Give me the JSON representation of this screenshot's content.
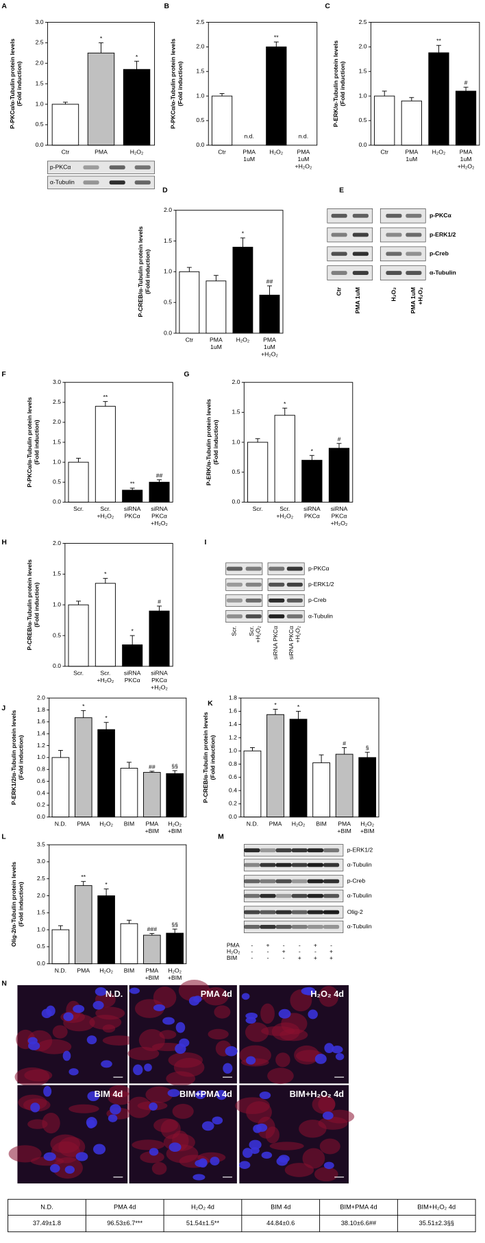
{
  "chart_data": [
    {
      "type": "bar",
      "panel": "A",
      "ylabel": [
        "P-PKCα/α-Tubulin protein levels",
        "(Fold induction)"
      ],
      "categories": [
        [
          "Ctr"
        ],
        [
          "PMA"
        ],
        [
          "H₂O₂"
        ]
      ],
      "values": [
        1,
        2.25,
        1.85
      ],
      "errors": [
        0.05,
        0.25,
        0.2
      ],
      "colors": [
        "#ffffff",
        "#c0c0c0",
        "#000000"
      ],
      "annotations": [
        null,
        "*",
        "*"
      ],
      "ylim": [
        0,
        3
      ],
      "yticks": [
        {
          "value": 0,
          "label": "0.0"
        },
        0.5,
        {
          "value": 1,
          "label": "1.0"
        },
        1.5,
        {
          "value": 2,
          "label": "2.0"
        },
        2.5,
        {
          "value": 3,
          "label": "3.0"
        }
      ]
    },
    {
      "type": "bar",
      "panel": "B",
      "ylabel": [
        "P-PKCα/α-Tubulin protein levels",
        "(Fold induction)"
      ],
      "categories": [
        [
          "Ctr"
        ],
        [
          "PMA",
          "1uM"
        ],
        [
          "H₂O₂"
        ],
        [
          "PMA",
          "1uM",
          "+H₂O₂"
        ]
      ],
      "values": [
        1,
        null,
        2,
        null
      ],
      "errors": [
        0.05,
        null,
        0.1,
        null
      ],
      "colors": [
        "#ffffff",
        "#ffffff",
        "#000000",
        "#000000"
      ],
      "annotations": [
        null,
        "n.d.",
        "**",
        "n.d."
      ],
      "ylim": [
        0,
        2.5
      ],
      "yticks": [
        {
          "value": 0,
          "label": "0.0"
        },
        0.5,
        {
          "value": 1,
          "label": "1.0"
        },
        1.5,
        {
          "value": 2,
          "label": "2.0"
        },
        2.5
      ]
    },
    {
      "type": "bar",
      "panel": "C",
      "ylabel": [
        "P-ERK/α-Tubulin protein levels",
        "(Fold induction)"
      ],
      "categories": [
        [
          "Ctr"
        ],
        [
          "PMA",
          "1uM"
        ],
        [
          "H₂O₂"
        ],
        [
          "PMA",
          "1uM",
          "+H₂O₂"
        ]
      ],
      "values": [
        1,
        0.9,
        1.88,
        1.1
      ],
      "errors": [
        0.1,
        0.07,
        0.15,
        0.08
      ],
      "colors": [
        "#ffffff",
        "#ffffff",
        "#000000",
        "#000000"
      ],
      "annotations": [
        null,
        null,
        "**",
        "#"
      ],
      "ylim": [
        0,
        2.5
      ],
      "yticks": [
        {
          "value": 0,
          "label": "0.0"
        },
        0.5,
        {
          "value": 1,
          "label": "1.0"
        },
        1.5,
        {
          "value": 2,
          "label": "2.0"
        },
        2.5
      ]
    },
    {
      "type": "bar",
      "panel": "D",
      "ylabel": [
        "P-CREB/α-Tubulin protein levels",
        "(Fold induction)"
      ],
      "categories": [
        [
          "Ctr"
        ],
        [
          "PMA",
          "1uM"
        ],
        [
          "H₂O₂"
        ],
        [
          "PMA",
          "1uM",
          "+H₂O₂"
        ]
      ],
      "values": [
        1,
        0.85,
        1.4,
        0.62
      ],
      "errors": [
        0.07,
        0.09,
        0.15,
        0.15
      ],
      "colors": [
        "#ffffff",
        "#ffffff",
        "#000000",
        "#000000"
      ],
      "annotations": [
        null,
        null,
        "*",
        "##"
      ],
      "ylim": [
        0,
        2
      ],
      "yticks": [
        {
          "value": 0,
          "label": "0.0"
        },
        0.5,
        {
          "value": 1,
          "label": "1.0"
        },
        1.5,
        {
          "value": 2,
          "label": "2.0"
        }
      ]
    },
    {
      "type": "bar",
      "panel": "F",
      "ylabel": [
        "P-PKCα/α-Tubulin protein levels",
        "(Fold induction)"
      ],
      "categories": [
        [
          "Scr."
        ],
        [
          "Scr.",
          "+H₂O₂"
        ],
        [
          "siRNA",
          "PKCα"
        ],
        [
          "siRNA",
          "PKCα",
          "+H₂O₂"
        ]
      ],
      "values": [
        1,
        2.4,
        0.3,
        0.5
      ],
      "errors": [
        0.1,
        0.12,
        0.05,
        0.06
      ],
      "colors": [
        "#ffffff",
        "#ffffff",
        "#000000",
        "#000000"
      ],
      "annotations": [
        null,
        "**",
        "**",
        "##"
      ],
      "ylim": [
        0,
        3
      ],
      "yticks": [
        {
          "value": 0,
          "label": "0.0"
        },
        0.5,
        {
          "value": 1,
          "label": "1.0"
        },
        1.5,
        {
          "value": 2,
          "label": "2.0"
        },
        2.5,
        {
          "value": 3,
          "label": "3.0"
        }
      ]
    },
    {
      "type": "bar",
      "panel": "G",
      "ylabel": [
        "P-ERK/α-Tubulin protein levels",
        "(Fold induction)"
      ],
      "categories": [
        [
          "Scr."
        ],
        [
          "Scr.",
          "+H₂O₂"
        ],
        [
          "siRNA",
          "PKCα"
        ],
        [
          "siRNA",
          "PKCα",
          "+H₂O₂"
        ]
      ],
      "values": [
        1,
        1.45,
        0.7,
        0.9
      ],
      "errors": [
        0.06,
        0.12,
        0.08,
        0.08
      ],
      "colors": [
        "#ffffff",
        "#ffffff",
        "#000000",
        "#000000"
      ],
      "annotations": [
        null,
        "*",
        "*",
        "#"
      ],
      "ylim": [
        0,
        2
      ],
      "yticks": [
        {
          "value": 0,
          "label": "0.0"
        },
        0.5,
        {
          "value": 1,
          "label": "1.0"
        },
        1.5,
        {
          "value": 2,
          "label": "2.0"
        }
      ]
    },
    {
      "type": "bar",
      "panel": "H",
      "ylabel": [
        "P-CREB/α-Tubulin protein levels",
        "(Fold induction)"
      ],
      "categories": [
        [
          "Scr."
        ],
        [
          "Scr.",
          "+H₂O₂"
        ],
        [
          "siRNA",
          "PKCα"
        ],
        [
          "siRNA",
          "PKCα",
          "+H₂O₂"
        ]
      ],
      "values": [
        1,
        1.35,
        0.35,
        0.9
      ],
      "errors": [
        0.06,
        0.08,
        0.15,
        0.08
      ],
      "colors": [
        "#ffffff",
        "#ffffff",
        "#000000",
        "#000000"
      ],
      "annotations": [
        null,
        "*",
        "*",
        "#"
      ],
      "ylim": [
        0,
        2
      ],
      "yticks": [
        {
          "value": 0,
          "label": "0.0"
        },
        0.5,
        {
          "value": 1,
          "label": "1.0"
        },
        1.5,
        {
          "value": 2,
          "label": "2.0"
        }
      ]
    },
    {
      "type": "bar",
      "panel": "J",
      "ylabel": [
        "P-ERK1/2/α-Tubulin protein levels",
        "(Fold induction)"
      ],
      "categories": [
        [
          "N.D."
        ],
        [
          "PMA"
        ],
        [
          "H₂O₂"
        ],
        [
          "BIM"
        ],
        [
          "PMA",
          "+BIM"
        ],
        [
          "H₂O₂",
          "+BIM"
        ]
      ],
      "values": [
        1,
        1.67,
        1.47,
        0.82,
        0.75,
        0.73
      ],
      "errors": [
        0.12,
        0.12,
        0.12,
        0.1,
        0.02,
        0.05
      ],
      "colors": [
        "#ffffff",
        "#c0c0c0",
        "#000000",
        "#ffffff",
        "#c0c0c0",
        "#000000"
      ],
      "annotations": [
        null,
        "*",
        "*",
        null,
        "##",
        "§§"
      ],
      "ylim": [
        0,
        2
      ],
      "yticks": [
        {
          "value": 0,
          "label": "0.0"
        },
        0.2,
        0.4,
        0.6,
        0.8,
        {
          "value": 1,
          "label": "1.0"
        },
        1.2,
        1.4,
        1.6,
        1.8,
        {
          "value": 2,
          "label": "2.0"
        }
      ]
    },
    {
      "type": "bar",
      "panel": "K",
      "ylabel": [
        "P-CREB/α-Tubulin protein levels",
        "(Fold induction)"
      ],
      "categories": [
        [
          "N.D."
        ],
        [
          "PMA"
        ],
        [
          "H₂O₂"
        ],
        [
          "BIM"
        ],
        [
          "PMA",
          "+BIM"
        ],
        [
          "H₂O₂",
          "+BIM"
        ]
      ],
      "values": [
        1,
        1.55,
        1.48,
        0.82,
        0.95,
        0.9
      ],
      "errors": [
        0.05,
        0.08,
        0.12,
        0.12,
        0.1,
        0.08
      ],
      "colors": [
        "#ffffff",
        "#c0c0c0",
        "#000000",
        "#ffffff",
        "#c0c0c0",
        "#000000"
      ],
      "annotations": [
        null,
        "*",
        "*",
        null,
        "#",
        "§"
      ],
      "ylim": [
        0,
        1.8
      ],
      "yticks": [
        {
          "value": 0,
          "label": "0.0"
        },
        0.2,
        0.4,
        0.6,
        0.8,
        {
          "value": 1,
          "label": "1.0"
        },
        1.2,
        1.4,
        1.6,
        1.8
      ]
    },
    {
      "type": "bar",
      "panel": "L",
      "ylabel": [
        "Olig-2/α-Tubulin protein levels",
        "(Fold induction)"
      ],
      "categories": [
        [
          "N.D."
        ],
        [
          "PMA"
        ],
        [
          "H₂O₂"
        ],
        [
          "BIM"
        ],
        [
          "PMA",
          "+BIM"
        ],
        [
          "H₂O₂",
          "+BIM"
        ]
      ],
      "values": [
        1,
        2.3,
        2,
        1.18,
        0.84,
        0.9
      ],
      "errors": [
        0.12,
        0.12,
        0.2,
        0.1,
        0.05,
        0.12
      ],
      "colors": [
        "#ffffff",
        "#c0c0c0",
        "#000000",
        "#ffffff",
        "#c0c0c0",
        "#000000"
      ],
      "annotations": [
        null,
        "**",
        "*",
        null,
        "###",
        "§§"
      ],
      "ylim": [
        0,
        3.5
      ],
      "yticks": [
        {
          "value": 0,
          "label": "0.0"
        },
        0.5,
        {
          "value": 1,
          "label": "1.0"
        },
        1.5,
        {
          "value": 2,
          "label": "2.0"
        },
        2.5,
        {
          "value": 3,
          "label": "3.0"
        },
        3.5
      ]
    }
  ],
  "blots": [
    {
      "rows": [
        "p-PKCα",
        "α-Tubulin"
      ]
    },
    {
      "panel": "E",
      "rows": [
        "p-PKCα",
        "p-ERK1/2",
        "p-Creb",
        "α-Tubulin"
      ],
      "lanes": [
        [
          "Ctr"
        ],
        [
          "PMA 1uM"
        ],
        [
          "H₂O₂"
        ],
        [
          "PMA 1uM",
          "+H₂O₂"
        ]
      ]
    },
    {
      "panel": "I",
      "rows": [
        "p-PKCα",
        "p-ERK1/2",
        "p-Creb",
        "α-Tubulin"
      ],
      "lanes": [
        [
          "Scr."
        ],
        [
          "Scr.",
          "+H₂O₂"
        ],
        [
          "siRNA PKCα"
        ],
        [
          "siRNA PKCα",
          "+H₂O₂"
        ]
      ]
    },
    {
      "panel": "M",
      "rows": [
        "p-ERK1/2",
        "α-Tubulin",
        "p-Creb",
        "α-Tubulin",
        "Olig-2",
        "α-Tubulin"
      ],
      "treatments": [
        {
          "name": "PMA",
          "signs": [
            "-",
            "+",
            "-",
            "-",
            "+",
            "-"
          ]
        },
        {
          "name": "H₂O₂",
          "signs": [
            "-",
            "-",
            "+",
            "-",
            "-",
            "+"
          ]
        },
        {
          "name": "BIM",
          "signs": [
            "-",
            "-",
            "-",
            "+",
            "+",
            "+"
          ]
        }
      ]
    }
  ],
  "images": {
    "panel": "N",
    "labels": [
      "N.D.",
      "PMA 4d",
      "H₂O₂ 4d",
      "BIM 4d",
      "BIM+PMA 4d",
      "BIM+H₂O₂ 4d"
    ]
  },
  "table": {
    "header": [
      "N.D.",
      "PMA 4d",
      "H₂O₂ 4d",
      "BIM 4d",
      "BIM+PMA 4d",
      "BIM+H₂O₂ 4d"
    ],
    "rows": [
      [
        "37.49±1.8",
        "96.53±6.7***",
        "51.54±1.5**",
        "44.84±0.6",
        "38.10±6.6##",
        "35.51±2.3§§"
      ]
    ]
  }
}
